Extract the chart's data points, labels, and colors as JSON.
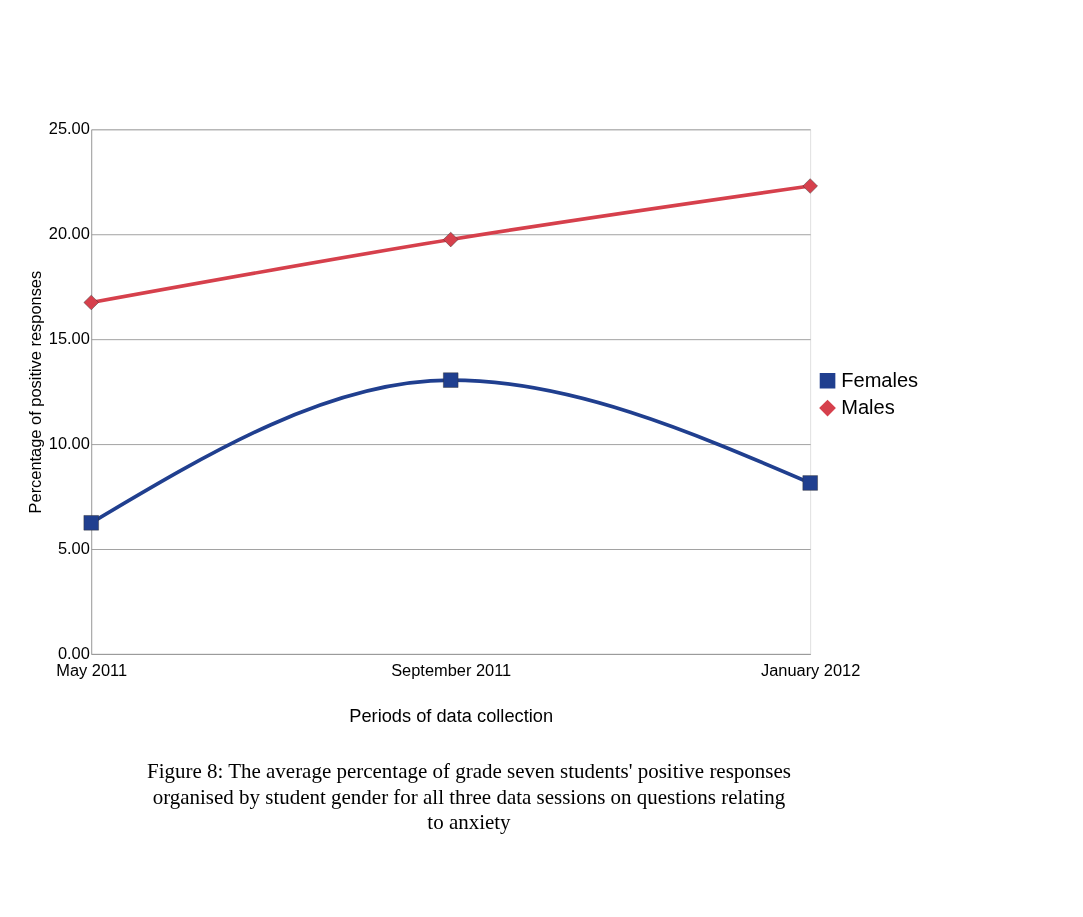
{
  "chart_data": {
    "type": "line",
    "xlabel": "Periods of data collection",
    "ylabel": "Percentage of positive responses",
    "categories": [
      "May 2011",
      "September 2011",
      "January 2012"
    ],
    "series": [
      {
        "name": "Females",
        "color": "#203f8f",
        "values": [
          6.25,
          13.05,
          8.15
        ],
        "marker": "square"
      },
      {
        "name": "Males",
        "color": "#d6404c",
        "values": [
          16.75,
          19.75,
          22.3
        ],
        "marker": "diamond"
      }
    ],
    "ylim": [
      0,
      25
    ],
    "yticks": [
      {
        "value": 0,
        "label": "0.00"
      },
      {
        "value": 5,
        "label": "5.00"
      },
      {
        "value": 10,
        "label": "10.00"
      },
      {
        "value": 15,
        "label": "15.00"
      },
      {
        "value": 20,
        "label": "20.00"
      },
      {
        "value": 25,
        "label": "25.00"
      }
    ],
    "grid": "y",
    "legend": "right",
    "annotations": [
      "Figure 8: The average percentage of grade seven students' positive responses organised by student gender for all three data sessions on questions relating to anxiety"
    ]
  }
}
